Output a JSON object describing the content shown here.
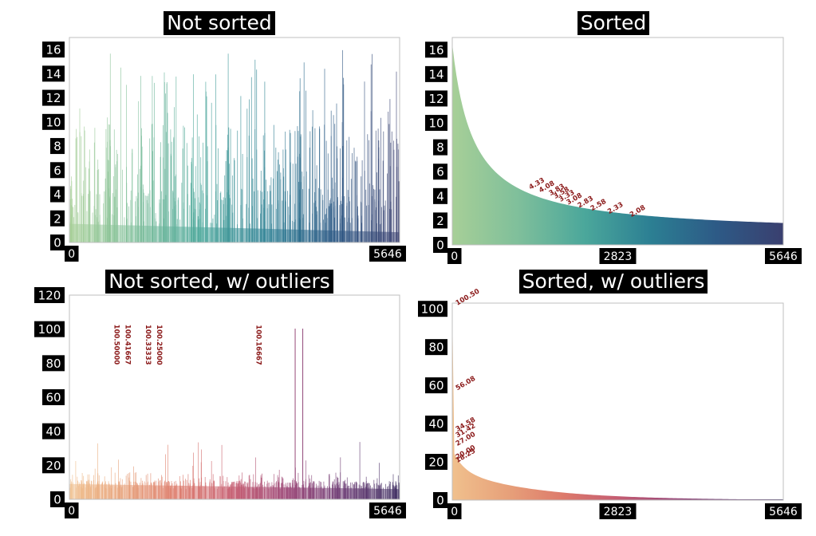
{
  "chart_data": [
    {
      "type": "bar",
      "title": "Not sorted",
      "palette": [
        "#a7cf97",
        "#7fbf9b",
        "#4ba79b",
        "#2c7f93",
        "#2d5a86",
        "#3a3f6f"
      ],
      "n_points": 5646,
      "xlim": [
        0,
        5646
      ],
      "xticks": [
        "0",
        "5646"
      ],
      "ylim": [
        0,
        17
      ],
      "yticks": [
        "0",
        "2",
        "4",
        "6",
        "8",
        "10",
        "12",
        "14",
        "16"
      ],
      "annotations": [],
      "sorted": false,
      "xlabel": "",
      "ylabel": ""
    },
    {
      "type": "bar",
      "title": "Sorted",
      "palette": [
        "#a7cf97",
        "#7fbf9b",
        "#4ba79b",
        "#2c7f93",
        "#2d5a86",
        "#3a3f6f"
      ],
      "n_points": 5646,
      "xlim": [
        0,
        5646
      ],
      "xticks": [
        "0",
        "2823",
        "5646"
      ],
      "ylim": [
        0,
        17
      ],
      "yticks": [
        "0",
        "2",
        "4",
        "6",
        "8",
        "10",
        "12",
        "14",
        "16"
      ],
      "annotations": [
        {
          "x": 3000,
          "y": 2.08,
          "label": "2.08"
        },
        {
          "x": 2620,
          "y": 2.33,
          "label": "2.33"
        },
        {
          "x": 2330,
          "y": 2.58,
          "label": "2.58"
        },
        {
          "x": 2110,
          "y": 2.83,
          "label": "2.83"
        },
        {
          "x": 1920,
          "y": 3.08,
          "label": "3.08"
        },
        {
          "x": 1790,
          "y": 3.33,
          "label": "3.33"
        },
        {
          "x": 1700,
          "y": 3.58,
          "label": "3.58"
        },
        {
          "x": 1620,
          "y": 3.83,
          "label": "3.83"
        },
        {
          "x": 1450,
          "y": 4.08,
          "label": "4.08"
        },
        {
          "x": 1280,
          "y": 4.33,
          "label": "4.33"
        }
      ],
      "sorted": true,
      "xlabel": "",
      "ylabel": ""
    },
    {
      "type": "bar",
      "title": "Not sorted, w/ outliers",
      "palette": [
        "#f0c08d",
        "#e7a17a",
        "#dd7a6b",
        "#c55d72",
        "#9c4a7a",
        "#6c3d75",
        "#3f2f63"
      ],
      "n_points": 5646,
      "xlim": [
        0,
        5646
      ],
      "xticks": [
        "0",
        "5646"
      ],
      "ylim": [
        0,
        120
      ],
      "yticks": [
        "0",
        "20",
        "40",
        "60",
        "80",
        "100",
        "120"
      ],
      "annotations": [
        {
          "x": 770,
          "y": 100.5,
          "label": "100.50000"
        },
        {
          "x": 960,
          "y": 100.41667,
          "label": "100.41667"
        },
        {
          "x": 1310,
          "y": 100.33333,
          "label": "100.33333"
        },
        {
          "x": 1500,
          "y": 100.25,
          "label": "100.25000"
        },
        {
          "x": 3200,
          "y": 100.16667,
          "label": "100.16667"
        }
      ],
      "sorted": false,
      "xlabel": "",
      "ylabel": ""
    },
    {
      "type": "bar",
      "title": "Sorted, w/ outliers",
      "palette": [
        "#f0c08d",
        "#e7a17a",
        "#dd7a6b",
        "#c55d72",
        "#9c4a7a",
        "#6c3d75",
        "#3f2f63"
      ],
      "n_points": 5646,
      "xlim": [
        0,
        5646
      ],
      "xticks": [
        "0",
        "2823",
        "5646"
      ],
      "ylim": [
        0,
        103
      ],
      "yticks": [
        "0",
        "20",
        "40",
        "60",
        "80",
        "100"
      ],
      "annotations": [
        {
          "x": 30,
          "y": 100.5,
          "label": "100.50"
        },
        {
          "x": 30,
          "y": 56.08,
          "label": "56.08"
        },
        {
          "x": 30,
          "y": 34.58,
          "label": "34.58"
        },
        {
          "x": 30,
          "y": 31.42,
          "label": "31.42"
        },
        {
          "x": 30,
          "y": 27.0,
          "label": "27.00"
        },
        {
          "x": 30,
          "y": 20.0,
          "label": "20.00"
        },
        {
          "x": 30,
          "y": 18.25,
          "label": "18.25"
        }
      ],
      "sorted": true,
      "xlabel": "",
      "ylabel": ""
    }
  ]
}
